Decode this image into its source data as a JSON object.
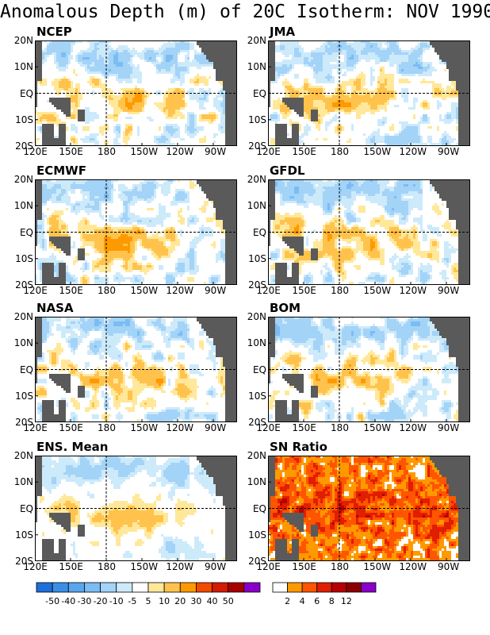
{
  "title": "Anomalous Depth (m) of 20C Isotherm: NOV 1990",
  "chart_data": {
    "type": "heatmap",
    "title": "Anomalous Depth (m) of 20C Isotherm: NOV 1990",
    "x_ticks": [
      "120E",
      "150E",
      "180",
      "150W",
      "120W",
      "90W"
    ],
    "y_ticks": [
      "20N",
      "10N",
      "EQ",
      "10S",
      "20S"
    ],
    "xlim": [
      120,
      290
    ],
    "ylim": [
      -20,
      20
    ],
    "reference_lines": [
      "EQ",
      "180"
    ],
    "land_color": "#5a5a5a",
    "panels": [
      {
        "name": "NCEP",
        "field": "anomaly"
      },
      {
        "name": "JMA",
        "field": "anomaly"
      },
      {
        "name": "ECMWF",
        "field": "anomaly"
      },
      {
        "name": "GFDL",
        "field": "anomaly"
      },
      {
        "name": "NASA",
        "field": "anomaly"
      },
      {
        "name": "BOM",
        "field": "anomaly"
      },
      {
        "name": "ENS. Mean",
        "field": "anomaly"
      },
      {
        "name": "SN Ratio",
        "field": "snr"
      }
    ],
    "anomaly_scale": {
      "labels": [
        "-50",
        "-40",
        "-30",
        "-20",
        "-10",
        "-5",
        "5",
        "10",
        "20",
        "30",
        "40",
        "50"
      ],
      "colors": [
        "#1e6fd9",
        "#3a8ee6",
        "#5aa6ee",
        "#7bbcf3",
        "#a3d3f7",
        "#cdeafb",
        "#ffffff",
        "#ffe89a",
        "#ffc34d",
        "#ff9900",
        "#f24a00",
        "#d41a00",
        "#a80000",
        "#8800c8"
      ]
    },
    "snr_scale": {
      "labels": [
        "2",
        "4",
        "6",
        "8",
        "12"
      ],
      "colors": [
        "#ffffff",
        "#ff9900",
        "#ff5500",
        "#e01e00",
        "#b80000",
        "#8c0000",
        "#8800c8"
      ]
    }
  }
}
